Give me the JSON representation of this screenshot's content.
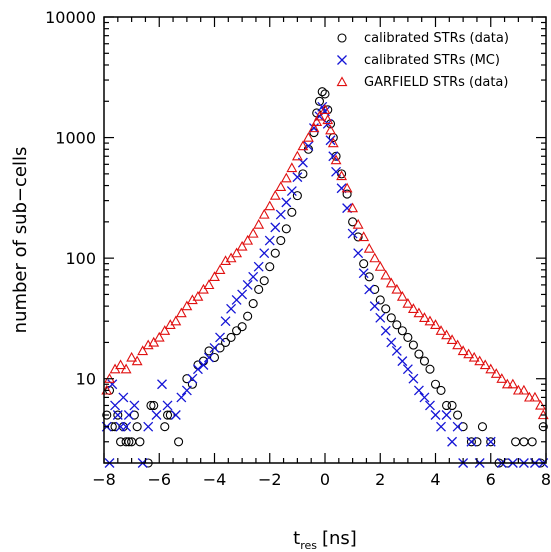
{
  "chart_data": {
    "type": "scatter",
    "title": "",
    "xlabel": {
      "main": "t",
      "sub": "res",
      "unit": "[ns]"
    },
    "ylabel": "number of sub−cells",
    "xlim": [
      -8,
      8
    ],
    "ylim": [
      2,
      10000
    ],
    "yscale": "log",
    "xticks": [
      -8,
      -6,
      -4,
      -2,
      0,
      2,
      4,
      6,
      8
    ],
    "yticks": [
      10,
      100,
      1000,
      10000
    ],
    "grid": false,
    "legend_position": "top-right",
    "series": [
      {
        "name": "calibrated STRs (data)",
        "marker": "circle",
        "color": "#000000",
        "points": [
          [
            -7.9,
            5
          ],
          [
            -7.8,
            8
          ],
          [
            -7.7,
            4
          ],
          [
            -7.6,
            4
          ],
          [
            -7.5,
            5
          ],
          [
            -7.4,
            3
          ],
          [
            -7.3,
            4
          ],
          [
            -7.2,
            3
          ],
          [
            -7.1,
            3
          ],
          [
            -7.0,
            3
          ],
          [
            -6.9,
            5
          ],
          [
            -6.8,
            4
          ],
          [
            -6.7,
            3
          ],
          [
            -6.4,
            2
          ],
          [
            -6.3,
            6
          ],
          [
            -6.2,
            6
          ],
          [
            -5.8,
            4
          ],
          [
            -5.7,
            5
          ],
          [
            -5.6,
            5
          ],
          [
            -5.3,
            3
          ],
          [
            -5.0,
            10
          ],
          [
            -4.8,
            9
          ],
          [
            -4.6,
            13
          ],
          [
            -4.4,
            14
          ],
          [
            -4.2,
            17
          ],
          [
            -4.0,
            15
          ],
          [
            -3.8,
            18
          ],
          [
            -3.6,
            20
          ],
          [
            -3.4,
            22
          ],
          [
            -3.2,
            25
          ],
          [
            -3.0,
            27
          ],
          [
            -2.8,
            33
          ],
          [
            -2.6,
            42
          ],
          [
            -2.4,
            55
          ],
          [
            -2.2,
            65
          ],
          [
            -2.0,
            85
          ],
          [
            -1.8,
            110
          ],
          [
            -1.6,
            140
          ],
          [
            -1.4,
            175
          ],
          [
            -1.2,
            240
          ],
          [
            -1.0,
            330
          ],
          [
            -0.8,
            500
          ],
          [
            -0.6,
            800
          ],
          [
            -0.4,
            1100
          ],
          [
            -0.3,
            1600
          ],
          [
            -0.2,
            2000
          ],
          [
            -0.1,
            2400
          ],
          [
            0.0,
            2300
          ],
          [
            0.1,
            1700
          ],
          [
            0.2,
            1300
          ],
          [
            0.3,
            1000
          ],
          [
            0.4,
            700
          ],
          [
            0.6,
            500
          ],
          [
            0.8,
            340
          ],
          [
            1.0,
            200
          ],
          [
            1.2,
            150
          ],
          [
            1.4,
            90
          ],
          [
            1.6,
            70
          ],
          [
            1.8,
            55
          ],
          [
            2.0,
            45
          ],
          [
            2.2,
            38
          ],
          [
            2.4,
            32
          ],
          [
            2.6,
            28
          ],
          [
            2.8,
            25
          ],
          [
            3.0,
            22
          ],
          [
            3.2,
            19
          ],
          [
            3.4,
            16
          ],
          [
            3.6,
            14
          ],
          [
            3.8,
            12
          ],
          [
            4.0,
            9
          ],
          [
            4.2,
            8
          ],
          [
            4.4,
            6
          ],
          [
            4.6,
            6
          ],
          [
            4.8,
            5
          ],
          [
            5.0,
            4
          ],
          [
            5.3,
            3
          ],
          [
            5.5,
            3
          ],
          [
            5.7,
            4
          ],
          [
            6.0,
            3
          ],
          [
            6.3,
            2
          ],
          [
            6.6,
            2
          ],
          [
            6.9,
            3
          ],
          [
            7.2,
            3
          ],
          [
            7.5,
            3
          ],
          [
            7.8,
            2
          ],
          [
            7.9,
            4
          ]
        ]
      },
      {
        "name": "calibrated STRs (MC)",
        "marker": "cross",
        "color": "#1515d6",
        "points": [
          [
            -7.9,
            4
          ],
          [
            -7.8,
            2
          ],
          [
            -7.7,
            9
          ],
          [
            -7.6,
            6
          ],
          [
            -7.5,
            5
          ],
          [
            -7.4,
            4
          ],
          [
            -7.3,
            7
          ],
          [
            -7.2,
            4
          ],
          [
            -7.1,
            5
          ],
          [
            -6.9,
            6
          ],
          [
            -6.6,
            2
          ],
          [
            -6.4,
            4
          ],
          [
            -6.1,
            5
          ],
          [
            -5.9,
            9
          ],
          [
            -5.7,
            6
          ],
          [
            -5.4,
            5
          ],
          [
            -5.2,
            7
          ],
          [
            -5.0,
            8
          ],
          [
            -4.8,
            10
          ],
          [
            -4.6,
            12
          ],
          [
            -4.4,
            13
          ],
          [
            -4.2,
            15
          ],
          [
            -4.0,
            18
          ],
          [
            -3.8,
            22
          ],
          [
            -3.6,
            30
          ],
          [
            -3.4,
            38
          ],
          [
            -3.2,
            45
          ],
          [
            -3.0,
            50
          ],
          [
            -2.8,
            60
          ],
          [
            -2.6,
            70
          ],
          [
            -2.4,
            85
          ],
          [
            -2.2,
            110
          ],
          [
            -2.0,
            140
          ],
          [
            -1.8,
            180
          ],
          [
            -1.6,
            230
          ],
          [
            -1.4,
            290
          ],
          [
            -1.2,
            360
          ],
          [
            -1.0,
            470
          ],
          [
            -0.8,
            620
          ],
          [
            -0.6,
            850
          ],
          [
            -0.4,
            1200
          ],
          [
            -0.2,
            1500
          ],
          [
            -0.1,
            1800
          ],
          [
            0.0,
            1650
          ],
          [
            0.1,
            1300
          ],
          [
            0.2,
            950
          ],
          [
            0.3,
            700
          ],
          [
            0.4,
            520
          ],
          [
            0.6,
            380
          ],
          [
            0.8,
            260
          ],
          [
            1.0,
            160
          ],
          [
            1.2,
            110
          ],
          [
            1.4,
            75
          ],
          [
            1.6,
            55
          ],
          [
            1.8,
            40
          ],
          [
            2.0,
            32
          ],
          [
            2.2,
            25
          ],
          [
            2.4,
            20
          ],
          [
            2.6,
            17
          ],
          [
            2.8,
            14
          ],
          [
            3.0,
            12
          ],
          [
            3.2,
            10
          ],
          [
            3.4,
            8
          ],
          [
            3.6,
            7
          ],
          [
            3.8,
            6
          ],
          [
            4.0,
            5
          ],
          [
            4.2,
            4
          ],
          [
            4.4,
            5
          ],
          [
            4.6,
            3
          ],
          [
            4.8,
            4
          ],
          [
            5.0,
            2
          ],
          [
            5.3,
            3
          ],
          [
            5.6,
            2
          ],
          [
            6.0,
            3
          ],
          [
            6.4,
            2
          ],
          [
            6.8,
            2
          ],
          [
            7.2,
            2
          ],
          [
            7.6,
            2
          ],
          [
            7.9,
            2
          ]
        ]
      },
      {
        "name": "GARFIELD STRs (data)",
        "marker": "triangle",
        "color": "#e01010",
        "points": [
          [
            -7.9,
            8
          ],
          [
            -7.8,
            10
          ],
          [
            -7.6,
            12
          ],
          [
            -7.4,
            13
          ],
          [
            -7.2,
            12
          ],
          [
            -7.0,
            15
          ],
          [
            -6.8,
            14
          ],
          [
            -6.6,
            17
          ],
          [
            -6.4,
            19
          ],
          [
            -6.2,
            20
          ],
          [
            -6.0,
            22
          ],
          [
            -5.8,
            25
          ],
          [
            -5.6,
            28
          ],
          [
            -5.4,
            30
          ],
          [
            -5.2,
            35
          ],
          [
            -5.0,
            40
          ],
          [
            -4.8,
            45
          ],
          [
            -4.6,
            48
          ],
          [
            -4.4,
            55
          ],
          [
            -4.2,
            60
          ],
          [
            -4.0,
            70
          ],
          [
            -3.8,
            80
          ],
          [
            -3.6,
            95
          ],
          [
            -3.4,
            100
          ],
          [
            -3.2,
            110
          ],
          [
            -3.0,
            125
          ],
          [
            -2.8,
            140
          ],
          [
            -2.6,
            160
          ],
          [
            -2.4,
            190
          ],
          [
            -2.2,
            230
          ],
          [
            -2.0,
            270
          ],
          [
            -1.8,
            330
          ],
          [
            -1.6,
            390
          ],
          [
            -1.4,
            460
          ],
          [
            -1.2,
            560
          ],
          [
            -1.0,
            700
          ],
          [
            -0.8,
            850
          ],
          [
            -0.6,
            1000
          ],
          [
            -0.4,
            1200
          ],
          [
            -0.3,
            1350
          ],
          [
            -0.2,
            1500
          ],
          [
            0.0,
            1700
          ],
          [
            0.1,
            1400
          ],
          [
            0.2,
            1150
          ],
          [
            0.3,
            900
          ],
          [
            0.4,
            650
          ],
          [
            0.6,
            480
          ],
          [
            0.8,
            380
          ],
          [
            1.0,
            260
          ],
          [
            1.2,
            190
          ],
          [
            1.4,
            150
          ],
          [
            1.6,
            120
          ],
          [
            1.8,
            100
          ],
          [
            2.0,
            85
          ],
          [
            2.2,
            72
          ],
          [
            2.4,
            62
          ],
          [
            2.6,
            55
          ],
          [
            2.8,
            48
          ],
          [
            3.0,
            42
          ],
          [
            3.2,
            38
          ],
          [
            3.4,
            35
          ],
          [
            3.6,
            32
          ],
          [
            3.8,
            30
          ],
          [
            4.0,
            28
          ],
          [
            4.2,
            25
          ],
          [
            4.4,
            23
          ],
          [
            4.6,
            21
          ],
          [
            4.8,
            19
          ],
          [
            5.0,
            17
          ],
          [
            5.2,
            16
          ],
          [
            5.4,
            15
          ],
          [
            5.6,
            14
          ],
          [
            5.8,
            13
          ],
          [
            6.0,
            12
          ],
          [
            6.2,
            11
          ],
          [
            6.4,
            10
          ],
          [
            6.6,
            9
          ],
          [
            6.8,
            9
          ],
          [
            7.0,
            8
          ],
          [
            7.2,
            8
          ],
          [
            7.4,
            7
          ],
          [
            7.6,
            7
          ],
          [
            7.8,
            6
          ],
          [
            7.9,
            5
          ]
        ]
      }
    ]
  }
}
